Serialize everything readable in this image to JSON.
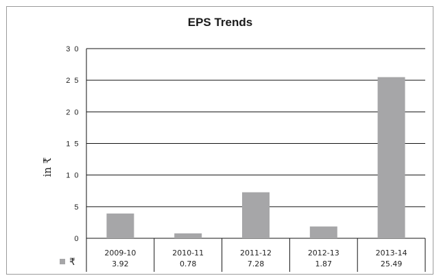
{
  "chart_data": {
    "type": "bar",
    "title": "EPS Trends",
    "ylabel": "in ₹",
    "xlabel": "",
    "categories": [
      "2009-10",
      "2010-11",
      "2011-12",
      "2012-13",
      "2013-14"
    ],
    "series": [
      {
        "name": "₹",
        "values": [
          3.92,
          0.78,
          7.28,
          1.87,
          25.49
        ],
        "color": "#a6a6a8"
      }
    ],
    "value_labels": [
      "3.92",
      "0.78",
      "7.28",
      "1.87",
      "25.49"
    ],
    "ylim": [
      0,
      30
    ],
    "yticks": [
      0,
      5,
      10,
      15,
      20,
      25,
      30
    ],
    "ytick_labels": [
      "0",
      "5",
      "1 0",
      "1 5",
      "2 0",
      "2 5",
      "3 0"
    ],
    "grid": true,
    "legend": "bottom-left, inline with data table"
  }
}
